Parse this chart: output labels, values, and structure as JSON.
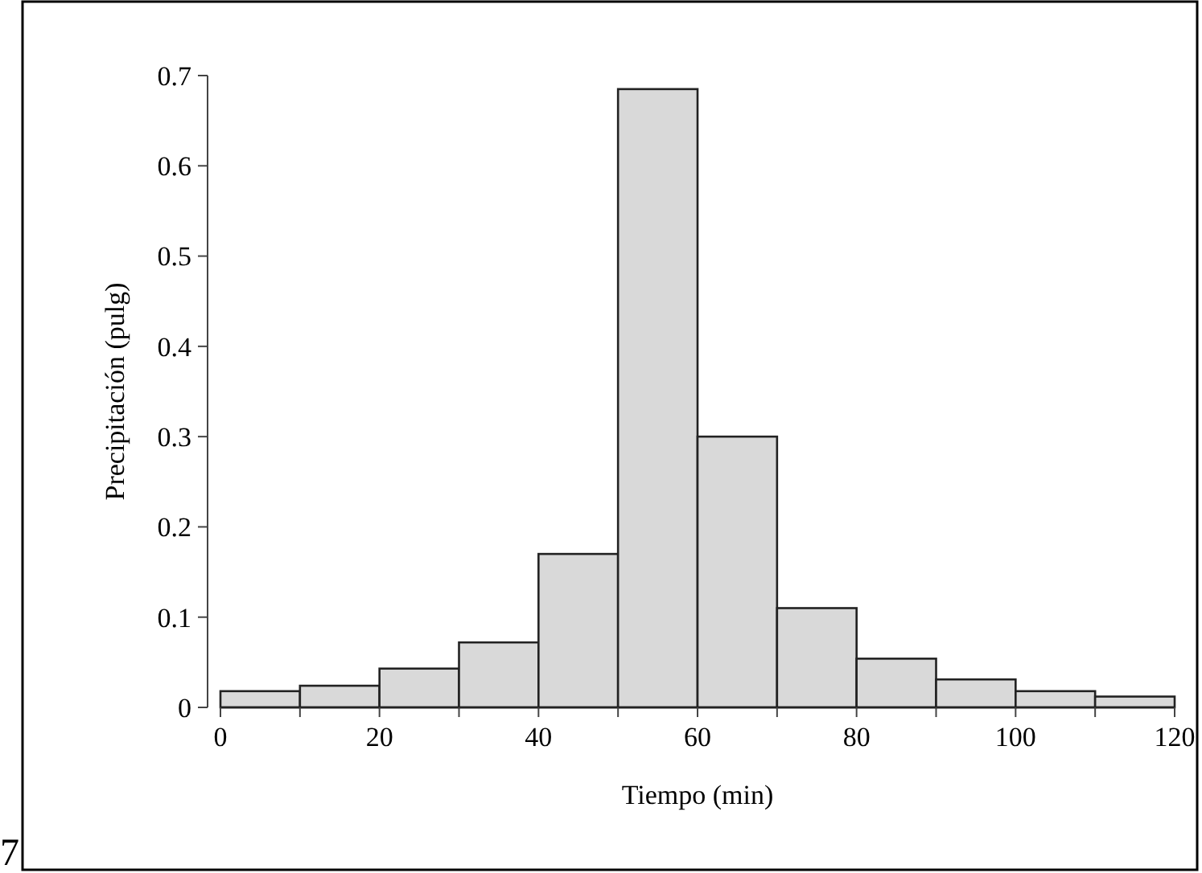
{
  "chart_data": {
    "type": "histogram",
    "xlabel": "Tiempo (min)",
    "ylabel": "Precipitación (pulg)",
    "bins": [
      0,
      10,
      20,
      30,
      40,
      50,
      60,
      70,
      80,
      90,
      100,
      110,
      120
    ],
    "values": [
      0.018,
      0.024,
      0.043,
      0.072,
      0.17,
      0.685,
      0.3,
      0.11,
      0.054,
      0.031,
      0.018,
      0.012
    ],
    "color": "#d9d9d9",
    "xlim": [
      0,
      120
    ],
    "xticks": [
      0,
      {
        "value": 10,
        "label": null
      },
      20,
      {
        "value": 30,
        "label": null
      },
      40,
      {
        "value": 50,
        "label": null
      },
      60,
      {
        "value": 70,
        "label": null
      },
      80,
      {
        "value": 90,
        "label": null
      },
      100,
      {
        "value": 110,
        "label": null
      },
      120
    ],
    "ylim": [
      0,
      0.7
    ],
    "yticks": [
      0,
      0.1,
      0.2,
      0.3,
      0.4,
      0.5,
      0.6,
      0.7
    ],
    "grid": false,
    "annotations": [
      "7"
    ]
  }
}
